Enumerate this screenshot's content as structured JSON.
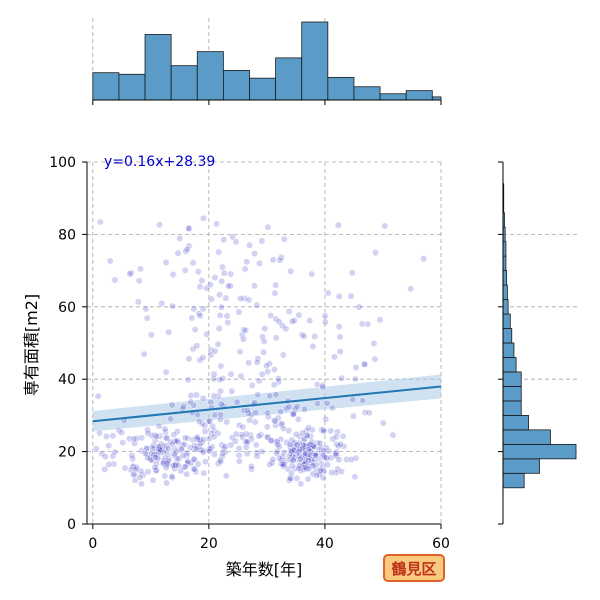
{
  "chart_data": {
    "type": "scatter",
    "equation_label": "y=0.16x+28.39",
    "xlabel": "築年数[年]",
    "ylabel": "専有面積[m2]",
    "xlim": [
      -1,
      60
    ],
    "ylim": [
      0,
      100
    ],
    "x_ticks": [
      "0",
      "20",
      "40",
      "60"
    ],
    "y_ticks": [
      "0",
      "20",
      "40",
      "60",
      "80",
      "100"
    ],
    "grid": true,
    "regression": {
      "slope": 0.16,
      "intercept": 28.39,
      "ci_halfwidth": 1.8
    },
    "colors": {
      "points": "#3232c8",
      "regression": "#1f77b4",
      "ci": "#a9c9e6",
      "hist": "#5b9bc8"
    },
    "x_histogram": {
      "bin_edges": [
        0,
        4.5,
        9,
        13.5,
        18,
        22.5,
        27,
        31.5,
        36,
        40.5,
        45,
        49.5,
        54,
        58.5,
        60
      ],
      "relative_heights": [
        0.35,
        0.33,
        0.84,
        0.44,
        0.62,
        0.38,
        0.28,
        0.54,
        1.0,
        0.29,
        0.17,
        0.08,
        0.12,
        0.04
      ]
    },
    "y_histogram": {
      "bin_edges": [
        10,
        14,
        18,
        22,
        26,
        30,
        34,
        38,
        42,
        46,
        50,
        54,
        58,
        62,
        66,
        70,
        74,
        78,
        82,
        86,
        90,
        94
      ],
      "relative_counts": [
        0.29,
        0.5,
        1.0,
        0.65,
        0.35,
        0.25,
        0.25,
        0.25,
        0.18,
        0.15,
        0.12,
        0.1,
        0.07,
        0.06,
        0.05,
        0.04,
        0.04,
        0.03,
        0.02,
        0.01,
        0.01
      ]
    }
  },
  "badge": {
    "label": "鶴見区"
  }
}
